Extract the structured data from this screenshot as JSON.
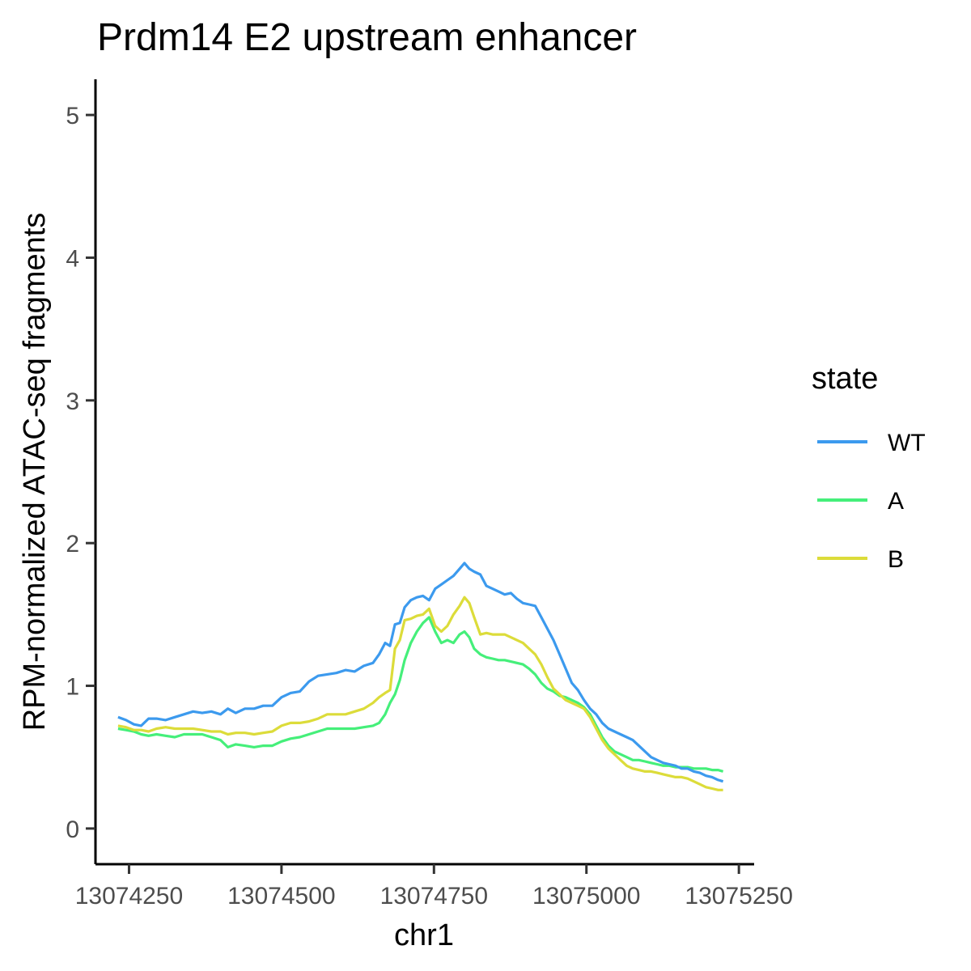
{
  "chart_data": {
    "type": "line",
    "title": "Prdm14 E2 upstream enhancer",
    "xlabel": "chr1",
    "ylabel": "RPM-normalized ATAC-seq fragments",
    "xlim": [
      13074195,
      13075275
    ],
    "ylim": [
      -0.25,
      5.25
    ],
    "xticks": [
      13074250,
      13074500,
      13074750,
      13075000,
      13075250
    ],
    "xtick_labels": [
      "13074250",
      "13074500",
      "13074750",
      "13075000",
      "13075250"
    ],
    "yticks": [
      0,
      1,
      2,
      3,
      4,
      5
    ],
    "ytick_labels": [
      "0",
      "1",
      "2",
      "3",
      "4",
      "5"
    ],
    "grid": false,
    "legend": {
      "title": "state",
      "position": "right"
    },
    "series": [
      {
        "name": "WT",
        "color": "#3c9aee",
        "x": [
          13074232,
          13074245,
          13074258,
          13074270,
          13074282,
          13074295,
          13074310,
          13074325,
          13074340,
          13074355,
          13074370,
          13074385,
          13074400,
          13074412,
          13074425,
          13074440,
          13074455,
          13074470,
          13074485,
          13074500,
          13074515,
          13074530,
          13074545,
          13074560,
          13074575,
          13074590,
          13074605,
          13074620,
          13074635,
          13074650,
          13074660,
          13074670,
          13074678,
          13074686,
          13074694,
          13074702,
          13074712,
          13074722,
          13074732,
          13074742,
          13074752,
          13074762,
          13074772,
          13074782,
          13074792,
          13074800,
          13074808,
          13074816,
          13074826,
          13074836,
          13074846,
          13074856,
          13074866,
          13074876,
          13074886,
          13074896,
          13074906,
          13074916,
          13074926,
          13074936,
          13074946,
          13074956,
          13074966,
          13074976,
          13074986,
          13074996,
          13075006,
          13075016,
          13075026,
          13075036,
          13075046,
          13075056,
          13075066,
          13075076,
          13075086,
          13075096,
          13075106,
          13075116,
          13075126,
          13075136,
          13075146,
          13075156,
          13075166,
          13075176,
          13075186,
          13075196,
          13075206,
          13075216,
          13075224
        ],
        "y": [
          0.78,
          0.76,
          0.73,
          0.72,
          0.77,
          0.77,
          0.76,
          0.78,
          0.8,
          0.82,
          0.81,
          0.82,
          0.8,
          0.84,
          0.81,
          0.84,
          0.84,
          0.86,
          0.86,
          0.92,
          0.95,
          0.96,
          1.03,
          1.07,
          1.08,
          1.09,
          1.11,
          1.1,
          1.14,
          1.16,
          1.22,
          1.3,
          1.28,
          1.43,
          1.44,
          1.55,
          1.6,
          1.62,
          1.63,
          1.6,
          1.68,
          1.71,
          1.74,
          1.77,
          1.82,
          1.86,
          1.82,
          1.8,
          1.78,
          1.7,
          1.68,
          1.66,
          1.64,
          1.65,
          1.61,
          1.58,
          1.57,
          1.56,
          1.48,
          1.4,
          1.32,
          1.22,
          1.12,
          1.02,
          0.97,
          0.9,
          0.84,
          0.8,
          0.74,
          0.7,
          0.68,
          0.66,
          0.64,
          0.62,
          0.58,
          0.54,
          0.5,
          0.48,
          0.46,
          0.45,
          0.44,
          0.42,
          0.42,
          0.4,
          0.39,
          0.37,
          0.36,
          0.34,
          0.33
        ]
      },
      {
        "name": "A",
        "color": "#45ef7a",
        "x": [
          13074232,
          13074245,
          13074258,
          13074270,
          13074282,
          13074295,
          13074310,
          13074325,
          13074340,
          13074355,
          13074370,
          13074385,
          13074400,
          13074412,
          13074425,
          13074440,
          13074455,
          13074470,
          13074485,
          13074500,
          13074515,
          13074530,
          13074545,
          13074560,
          13074575,
          13074590,
          13074605,
          13074620,
          13074635,
          13074650,
          13074660,
          13074670,
          13074678,
          13074686,
          13074694,
          13074702,
          13074712,
          13074722,
          13074732,
          13074742,
          13074752,
          13074762,
          13074772,
          13074782,
          13074792,
          13074800,
          13074808,
          13074816,
          13074826,
          13074836,
          13074846,
          13074856,
          13074866,
          13074876,
          13074886,
          13074896,
          13074906,
          13074916,
          13074926,
          13074936,
          13074946,
          13074956,
          13074966,
          13074976,
          13074986,
          13074996,
          13075006,
          13075016,
          13075026,
          13075036,
          13075046,
          13075056,
          13075066,
          13075076,
          13075086,
          13075096,
          13075106,
          13075116,
          13075126,
          13075136,
          13075146,
          13075156,
          13075166,
          13075176,
          13075186,
          13075196,
          13075206,
          13075216,
          13075224
        ],
        "y": [
          0.7,
          0.69,
          0.68,
          0.66,
          0.65,
          0.66,
          0.65,
          0.64,
          0.66,
          0.66,
          0.66,
          0.64,
          0.62,
          0.57,
          0.59,
          0.58,
          0.57,
          0.58,
          0.58,
          0.61,
          0.63,
          0.64,
          0.66,
          0.68,
          0.7,
          0.7,
          0.7,
          0.7,
          0.71,
          0.72,
          0.74,
          0.8,
          0.88,
          0.94,
          1.04,
          1.18,
          1.3,
          1.38,
          1.44,
          1.48,
          1.38,
          1.3,
          1.32,
          1.3,
          1.36,
          1.38,
          1.34,
          1.26,
          1.22,
          1.2,
          1.19,
          1.18,
          1.18,
          1.17,
          1.16,
          1.15,
          1.12,
          1.08,
          1.02,
          0.98,
          0.96,
          0.93,
          0.92,
          0.9,
          0.88,
          0.85,
          0.8,
          0.72,
          0.64,
          0.58,
          0.54,
          0.52,
          0.5,
          0.48,
          0.48,
          0.47,
          0.46,
          0.45,
          0.44,
          0.44,
          0.43,
          0.43,
          0.43,
          0.42,
          0.42,
          0.42,
          0.41,
          0.41,
          0.4
        ]
      },
      {
        "name": "B",
        "color": "#dcdc3a",
        "x": [
          13074232,
          13074245,
          13074258,
          13074270,
          13074282,
          13074295,
          13074310,
          13074325,
          13074340,
          13074355,
          13074370,
          13074385,
          13074400,
          13074412,
          13074425,
          13074440,
          13074455,
          13074470,
          13074485,
          13074500,
          13074515,
          13074530,
          13074545,
          13074560,
          13074575,
          13074590,
          13074605,
          13074620,
          13074635,
          13074650,
          13074660,
          13074670,
          13074678,
          13074686,
          13074694,
          13074702,
          13074712,
          13074722,
          13074732,
          13074742,
          13074752,
          13074762,
          13074772,
          13074782,
          13074792,
          13074800,
          13074808,
          13074816,
          13074826,
          13074836,
          13074846,
          13074856,
          13074866,
          13074876,
          13074886,
          13074896,
          13074906,
          13074916,
          13074926,
          13074936,
          13074946,
          13074956,
          13074966,
          13074976,
          13074986,
          13074996,
          13075006,
          13075016,
          13075026,
          13075036,
          13075046,
          13075056,
          13075066,
          13075076,
          13075086,
          13075096,
          13075106,
          13075116,
          13075126,
          13075136,
          13075146,
          13075156,
          13075166,
          13075176,
          13075186,
          13075196,
          13075206,
          13075216,
          13075224
        ],
        "y": [
          0.72,
          0.71,
          0.69,
          0.69,
          0.68,
          0.7,
          0.71,
          0.7,
          0.7,
          0.7,
          0.69,
          0.68,
          0.68,
          0.66,
          0.67,
          0.67,
          0.66,
          0.67,
          0.68,
          0.72,
          0.74,
          0.74,
          0.75,
          0.77,
          0.8,
          0.8,
          0.8,
          0.82,
          0.84,
          0.88,
          0.92,
          0.95,
          0.97,
          1.26,
          1.32,
          1.46,
          1.47,
          1.49,
          1.5,
          1.54,
          1.42,
          1.38,
          1.42,
          1.5,
          1.56,
          1.62,
          1.58,
          1.48,
          1.36,
          1.37,
          1.36,
          1.36,
          1.36,
          1.34,
          1.32,
          1.3,
          1.26,
          1.22,
          1.15,
          1.06,
          0.98,
          0.94,
          0.9,
          0.88,
          0.86,
          0.84,
          0.78,
          0.7,
          0.62,
          0.56,
          0.52,
          0.48,
          0.44,
          0.42,
          0.41,
          0.4,
          0.4,
          0.39,
          0.38,
          0.37,
          0.36,
          0.36,
          0.35,
          0.33,
          0.31,
          0.29,
          0.28,
          0.27,
          0.27
        ]
      }
    ]
  }
}
